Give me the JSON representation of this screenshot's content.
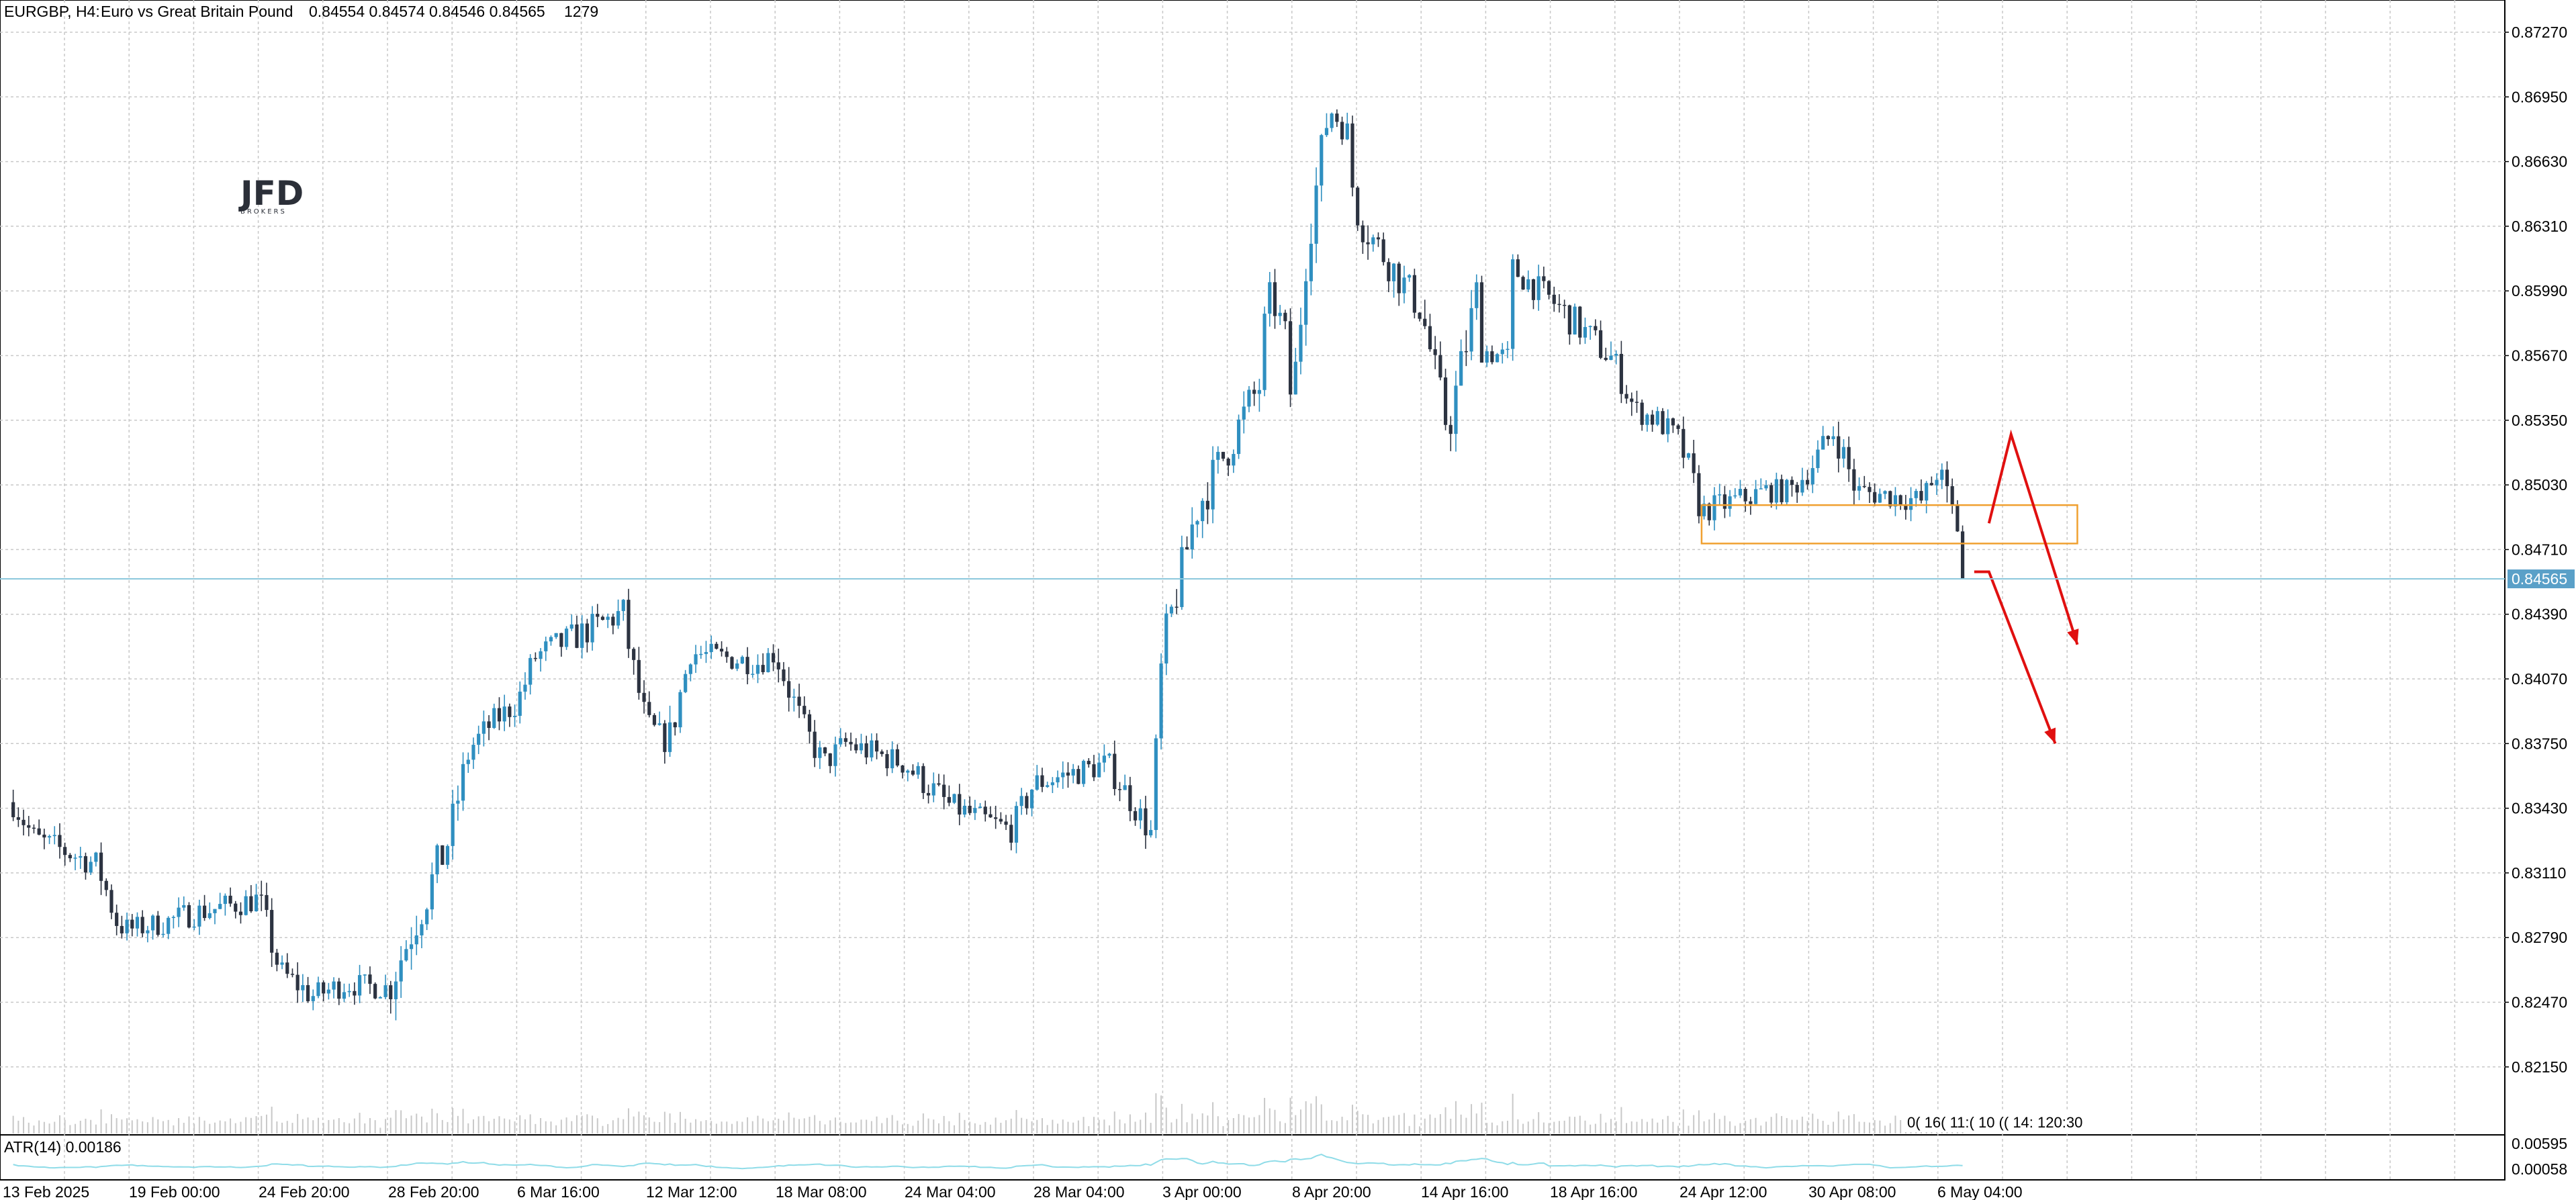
{
  "header": {
    "symbol_timeframe": "EURGBP, H4:",
    "description": "Euro vs Great Britain Pound",
    "ohlc": "0.84554 0.84574 0.84546 0.84565",
    "bars": "1279"
  },
  "logo": {
    "name": "JFD",
    "sub": "BROKERS"
  },
  "current_price": "0.84565",
  "indicator": {
    "label": "ATR(14) 0.00186",
    "ticks": [
      "0.00595",
      "0.00058"
    ]
  },
  "overlapped_labels": "0( 16( 11:( 10 (( 14: 120:30",
  "colors": {
    "bull": "#2f8fc0",
    "bear": "#2c3341",
    "grid": "#c8c8c8",
    "current_line": "#8cc8dc",
    "price_tag": "#5aa0c8",
    "zone": "#f0a030",
    "arrow": "#e01010",
    "atr": "#8fdce8",
    "volume": "#c8c8c8"
  },
  "chart_data": {
    "type": "candlestick",
    "title": "EURGBP, H4: Euro vs Great Britain Pound",
    "y_ticks": [
      "0.87270",
      "0.86950",
      "0.86630",
      "0.86310",
      "0.85990",
      "0.85670",
      "0.85350",
      "0.85030",
      "0.84710",
      "0.84390",
      "0.84070",
      "0.83750",
      "0.83430",
      "0.83110",
      "0.82790",
      "0.82470",
      "0.82150"
    ],
    "ylim": [
      0.8195,
      0.8737
    ],
    "x_ticks": [
      "13 Feb 2025",
      "19 Feb 00:00",
      "24 Feb 20:00",
      "28 Feb 20:00",
      "6 Mar 16:00",
      "12 Mar 12:00",
      "18 Mar 08:00",
      "24 Mar 04:00",
      "28 Mar 04:00",
      "3 Apr 00:00",
      "8 Apr 20:00",
      "14 Apr 16:00",
      "18 Apr 16:00",
      "24 Apr 12:00",
      "30 Apr 08:00",
      "6 May 04:00"
    ],
    "anchors": [
      {
        "t": "13 Feb 2025",
        "c": 0.8346
      },
      {
        "t": "14 Feb",
        "c": 0.8328
      },
      {
        "t": "17 Feb",
        "c": 0.8315
      },
      {
        "t": "18 Feb",
        "c": 0.8285
      },
      {
        "t": "19 Feb 00:00",
        "c": 0.8283
      },
      {
        "t": "20 Feb",
        "c": 0.8286
      },
      {
        "t": "21 Feb",
        "c": 0.829
      },
      {
        "t": "24 Feb 20:00",
        "c": 0.8298
      },
      {
        "t": "25 Feb",
        "c": 0.8262
      },
      {
        "t": "26 Feb",
        "c": 0.825
      },
      {
        "t": "27 Feb",
        "c": 0.8256
      },
      {
        "t": "28 Feb 20:00",
        "c": 0.8254
      },
      {
        "t": "3 Mar",
        "c": 0.8325
      },
      {
        "t": "4 Mar",
        "c": 0.8372
      },
      {
        "t": "5 Mar",
        "c": 0.8385
      },
      {
        "t": "6 Mar 16:00",
        "c": 0.8395
      },
      {
        "t": "7 Mar",
        "c": 0.8418
      },
      {
        "t": "11 Mar",
        "c": 0.844
      },
      {
        "t": "11 Mar 18:00",
        "c": 0.842
      },
      {
        "t": "12 Mar 12:00",
        "c": 0.8385
      },
      {
        "t": "13 Mar",
        "c": 0.8375
      },
      {
        "t": "14 Mar",
        "c": 0.842
      },
      {
        "t": "17 Mar",
        "c": 0.8415
      },
      {
        "t": "18 Mar 08:00",
        "c": 0.842
      },
      {
        "t": "19 Mar",
        "c": 0.8385
      },
      {
        "t": "20 Mar",
        "c": 0.8365
      },
      {
        "t": "21 Mar",
        "c": 0.8375
      },
      {
        "t": "24 Mar 04:00",
        "c": 0.8365
      },
      {
        "t": "25 Mar",
        "c": 0.8345
      },
      {
        "t": "26 Mar",
        "c": 0.8338
      },
      {
        "t": "27 Mar",
        "c": 0.8332
      },
      {
        "t": "28 Mar 04:00",
        "c": 0.8355
      },
      {
        "t": "31 Mar",
        "c": 0.8365
      },
      {
        "t": "1 Apr",
        "c": 0.8348
      },
      {
        "t": "2 Apr",
        "c": 0.833
      },
      {
        "t": "3 Apr 00:00",
        "c": 0.842
      },
      {
        "t": "4 Apr",
        "c": 0.849
      },
      {
        "t": "7 Apr",
        "c": 0.8555
      },
      {
        "t": "7 Apr 16:00",
        "c": 0.86
      },
      {
        "t": "8 Apr",
        "c": 0.858
      },
      {
        "t": "8 Apr 20:00",
        "c": 0.854
      },
      {
        "t": "9 Apr",
        "c": 0.862
      },
      {
        "t": "10 Apr",
        "c": 0.869
      },
      {
        "t": "11 Apr",
        "c": 0.8675
      },
      {
        "t": "11 Apr 12:00",
        "c": 0.8655
      },
      {
        "t": "11 Apr 20:00",
        "c": 0.8635
      },
      {
        "t": "14 Apr 16:00",
        "c": 0.859
      },
      {
        "t": "15 Apr",
        "c": 0.853
      },
      {
        "t": "16 Apr",
        "c": 0.8605
      },
      {
        "t": "16 Apr 12:00",
        "c": 0.857
      },
      {
        "t": "17 Apr",
        "c": 0.8565
      },
      {
        "t": "17 Apr 12:00",
        "c": 0.861
      },
      {
        "t": "18 Apr 16:00",
        "c": 0.8595
      },
      {
        "t": "21 Apr",
        "c": 0.8565
      },
      {
        "t": "22 Apr",
        "c": 0.854
      },
      {
        "t": "23 Apr",
        "c": 0.8535
      },
      {
        "t": "24 Apr 12:00",
        "c": 0.8525
      },
      {
        "t": "25 Apr",
        "c": 0.849
      },
      {
        "t": "28 Apr",
        "c": 0.85
      },
      {
        "t": "29 Apr",
        "c": 0.85
      },
      {
        "t": "30 Apr 08:00",
        "c": 0.851
      },
      {
        "t": "1 May",
        "c": 0.853
      },
      {
        "t": "2 May",
        "c": 0.85
      },
      {
        "t": "5 May",
        "c": 0.8495
      },
      {
        "t": "6 May 04:00",
        "c": 0.851
      },
      {
        "t": "7 May",
        "c": 0.847
      },
      {
        "t": "7 May 12:00",
        "c": 0.84565
      }
    ],
    "zone": {
      "from": "25 Apr",
      "to": "12 May",
      "low": 0.8474,
      "high": 0.8493
    },
    "arrows": [
      {
        "points": [
          {
            "t": "8 May",
            "p": 0.8484
          },
          {
            "t": "9 May",
            "p": 0.8528
          },
          {
            "t": "12 May",
            "p": 0.8424
          }
        ]
      },
      {
        "points": [
          {
            "t": "7 May 20:00",
            "p": 0.846
          },
          {
            "t": "8 May 12:00",
            "p": 0.846
          },
          {
            "t": "11 May",
            "p": 0.8375
          }
        ]
      }
    ]
  }
}
